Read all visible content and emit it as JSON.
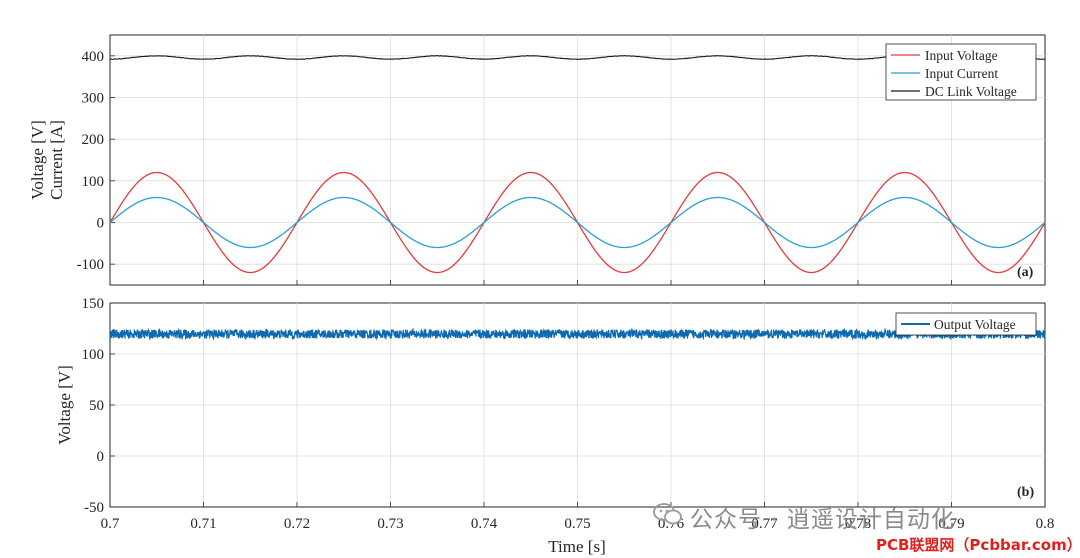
{
  "chart_data": [
    {
      "type": "line",
      "panel_tag": "(a)",
      "ylabel_lines": [
        "Voltage [V]",
        "Current [A]"
      ],
      "xlim": [
        0.7,
        0.8
      ],
      "ylim": [
        -150,
        450
      ],
      "yticks": [
        "-100",
        "0",
        "100",
        "200",
        "300",
        "400"
      ],
      "ytick_values": [
        -100,
        0,
        100,
        200,
        300,
        400
      ],
      "grid": true,
      "legend_position": "top-right",
      "series": [
        {
          "name": "Input Voltage",
          "color": "#e8393a",
          "waveform": "sine",
          "amplitude": 120,
          "frequency_hz": 50,
          "offset": 0
        },
        {
          "name": "Input Current",
          "color": "#2a9fd6",
          "waveform": "sine",
          "amplitude": 60,
          "frequency_hz": 50,
          "offset": 0
        },
        {
          "name": "DC Link Voltage",
          "color": "#1a1a1a",
          "waveform": "ripple",
          "amplitude": 4,
          "frequency_hz": 100,
          "offset": 396
        }
      ]
    },
    {
      "type": "line",
      "panel_tag": "(b)",
      "ylabel": "Voltage [V]",
      "xlabel": "Time [s]",
      "xlim": [
        0.7,
        0.8
      ],
      "ylim": [
        -50,
        150
      ],
      "yticks": [
        "-50",
        "0",
        "50",
        "100",
        "150"
      ],
      "ytick_values": [
        -50,
        0,
        50,
        100,
        150
      ],
      "xticks": [
        "0.7",
        "0.71",
        "0.72",
        "0.73",
        "0.74",
        "0.75",
        "0.76",
        "0.77",
        "0.78",
        "0.79",
        "0.8"
      ],
      "xtick_values": [
        0.7,
        0.71,
        0.72,
        0.73,
        0.74,
        0.75,
        0.76,
        0.77,
        0.78,
        0.79,
        0.8
      ],
      "grid": true,
      "legend_position": "top-right",
      "series": [
        {
          "name": "Output Voltage",
          "color": "#0e6ab0",
          "waveform": "noisy-dc",
          "mean": 120,
          "band": [
            116,
            125
          ]
        }
      ]
    }
  ],
  "watermark": {
    "text": "公众号 · 逍遥设计自动化",
    "site": "PCB联盟网（Pcbbar.com）"
  }
}
